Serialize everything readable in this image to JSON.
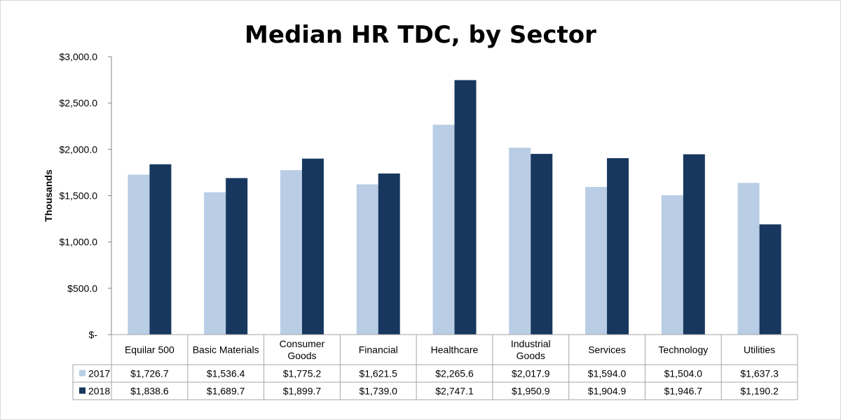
{
  "chart_data": {
    "type": "bar",
    "title": "Median HR TDC, by Sector",
    "ylabel": "Thousands",
    "xlabel": "",
    "ylim": [
      0,
      3000
    ],
    "yticks": [
      "$-",
      "$500.0",
      "$1,000.0",
      "$1,500.0",
      "$2,000.0",
      "$2,500.0",
      "$3,000.0"
    ],
    "grid": false,
    "legend": "data-table",
    "categories": [
      [
        "Equilar 500"
      ],
      [
        "Basic Materials"
      ],
      [
        "Consumer",
        "Goods"
      ],
      [
        "Financial"
      ],
      [
        "Healthcare"
      ],
      [
        "Industrial",
        "Goods"
      ],
      [
        "Services"
      ],
      [
        "Technology"
      ],
      [
        "Utilities"
      ]
    ],
    "series": [
      {
        "name": "2017",
        "color": "#b9cde5",
        "values": [
          1726.7,
          1536.4,
          1775.2,
          1621.5,
          2265.6,
          2017.9,
          1594.0,
          1504.0,
          1637.3
        ],
        "labels": [
          "$1,726.7",
          "$1,536.4",
          "$1,775.2",
          "$1,621.5",
          "$2,265.6",
          "$2,017.9",
          "$1,594.0",
          "$1,504.0",
          "$1,637.3"
        ]
      },
      {
        "name": "2018",
        "color": "#17375e",
        "values": [
          1838.6,
          1689.7,
          1899.7,
          1739.0,
          2747.1,
          1950.9,
          1904.9,
          1946.7,
          1190.2
        ],
        "labels": [
          "$1,838.6",
          "$1,689.7",
          "$1,899.7",
          "$1,739.0",
          "$2,747.1",
          "$1,950.9",
          "$1,904.9",
          "$1,946.7",
          "$1,190.2"
        ]
      }
    ]
  }
}
